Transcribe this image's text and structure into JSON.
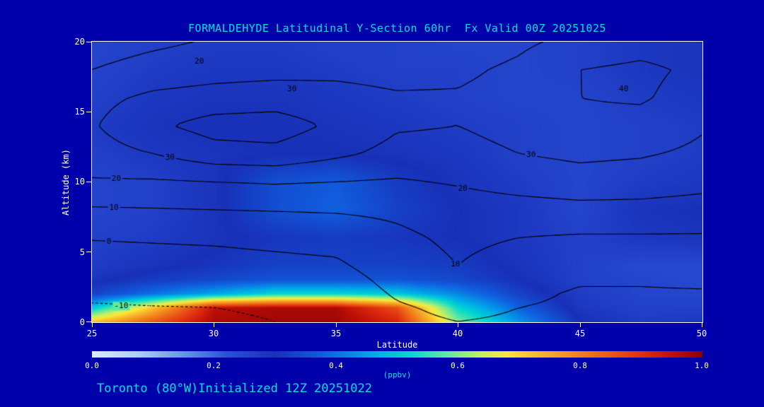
{
  "title": "FORMALDEHYDE Latitudinal Y-Section 60hr  Fx Valid 00Z 20251025",
  "footer": "Toronto (80°W)Initialized 12Z 20251022",
  "colors": {
    "background": "#0000aa",
    "accent": "#00e0e0",
    "tick": "#ffffff",
    "frame": "#ffffff"
  },
  "axes": {
    "x": {
      "label": "Latitude",
      "min": 25,
      "max": 50,
      "ticks": [
        "25",
        "30",
        "35",
        "40",
        "45",
        "50"
      ]
    },
    "y": {
      "label": "Altitude (km)",
      "min": 0,
      "max": 20,
      "ticks": [
        "0",
        "5",
        "10",
        "15",
        "20"
      ]
    }
  },
  "colorbar": {
    "label": "(ppbv)",
    "min": 0,
    "max": 1,
    "ticks": [
      "0.0",
      "0.2",
      "0.4",
      "0.6",
      "0.8",
      "1.0"
    ]
  },
  "chart_data": {
    "type": "heatmap",
    "title": "FORMALDEHYDE Latitudinal Y-Section 60hr Fx Valid 00Z 20251025",
    "xlabel": "Latitude",
    "ylabel": "Altitude (km)",
    "xlim": [
      25,
      50
    ],
    "ylim": [
      0,
      20
    ],
    "units": "ppbv",
    "fill_range": [
      0,
      1
    ],
    "x_lat": [
      25,
      27.5,
      30,
      32.5,
      35,
      37.5,
      40,
      42.5,
      45,
      47.5,
      50
    ],
    "y_alt_km": [
      0,
      1,
      2,
      3,
      4,
      6,
      8,
      10,
      12,
      14,
      16,
      18,
      20
    ],
    "fill_values_ppbv": [
      [
        0.72,
        0.85,
        0.97,
        0.98,
        0.98,
        0.92,
        0.6,
        0.44,
        0.3,
        0.27,
        0.28
      ],
      [
        0.5,
        0.72,
        0.95,
        0.97,
        0.97,
        0.86,
        0.52,
        0.38,
        0.28,
        0.26,
        0.26
      ],
      [
        0.33,
        0.4,
        0.46,
        0.52,
        0.52,
        0.5,
        0.42,
        0.33,
        0.27,
        0.25,
        0.25
      ],
      [
        0.29,
        0.32,
        0.34,
        0.36,
        0.36,
        0.36,
        0.34,
        0.3,
        0.26,
        0.25,
        0.24
      ],
      [
        0.27,
        0.29,
        0.31,
        0.33,
        0.33,
        0.33,
        0.32,
        0.29,
        0.26,
        0.24,
        0.24
      ],
      [
        0.26,
        0.27,
        0.29,
        0.31,
        0.32,
        0.31,
        0.3,
        0.28,
        0.26,
        0.28,
        0.29
      ],
      [
        0.25,
        0.26,
        0.29,
        0.35,
        0.38,
        0.33,
        0.3,
        0.28,
        0.25,
        0.29,
        0.3
      ],
      [
        0.25,
        0.26,
        0.29,
        0.35,
        0.37,
        0.32,
        0.29,
        0.27,
        0.25,
        0.27,
        0.28
      ],
      [
        0.26,
        0.28,
        0.29,
        0.3,
        0.3,
        0.29,
        0.28,
        0.26,
        0.25,
        0.26,
        0.27
      ],
      [
        0.27,
        0.29,
        0.3,
        0.3,
        0.29,
        0.28,
        0.27,
        0.26,
        0.25,
        0.26,
        0.27
      ],
      [
        0.26,
        0.28,
        0.29,
        0.29,
        0.28,
        0.27,
        0.26,
        0.25,
        0.25,
        0.27,
        0.28
      ],
      [
        0.25,
        0.27,
        0.28,
        0.28,
        0.27,
        0.26,
        0.26,
        0.25,
        0.26,
        0.28,
        0.29
      ],
      [
        0.25,
        0.26,
        0.27,
        0.27,
        0.26,
        0.26,
        0.25,
        0.25,
        0.26,
        0.28,
        0.29
      ]
    ],
    "colormap_stops": [
      {
        "pos": 0.0,
        "color": "#dcecfa"
      },
      {
        "pos": 0.08,
        "color": "#a8ccf0"
      },
      {
        "pos": 0.16,
        "color": "#5c8ee8"
      },
      {
        "pos": 0.22,
        "color": "#2b50d8"
      },
      {
        "pos": 0.3,
        "color": "#1830b8"
      },
      {
        "pos": 0.38,
        "color": "#1060e0"
      },
      {
        "pos": 0.46,
        "color": "#00a8e8"
      },
      {
        "pos": 0.52,
        "color": "#00d8d0"
      },
      {
        "pos": 0.58,
        "color": "#60e8a0"
      },
      {
        "pos": 0.64,
        "color": "#c8f060"
      },
      {
        "pos": 0.68,
        "color": "#f8e838"
      },
      {
        "pos": 0.74,
        "color": "#f8b028"
      },
      {
        "pos": 0.82,
        "color": "#f07018"
      },
      {
        "pos": 0.9,
        "color": "#e03010"
      },
      {
        "pos": 0.95,
        "color": "#c01008"
      },
      {
        "pos": 1.0,
        "color": "#8c0000"
      }
    ],
    "contour_overlay": {
      "line_color": "#000000",
      "levels": [
        -10,
        0,
        10,
        20,
        30,
        40
      ],
      "negative_linestyle": "dotted",
      "values": [
        [
          -13,
          -12.5,
          -12,
          -10,
          -8,
          -2,
          0,
          -1,
          -2,
          -2,
          -2
        ],
        [
          -10.5,
          -10.2,
          -10,
          -8.5,
          -6.5,
          -1,
          2,
          0,
          -1.5,
          -1.5,
          -1.5
        ],
        [
          -9,
          -8.5,
          -8,
          -7,
          -5.5,
          1,
          5,
          2,
          -1,
          -0.5,
          -0.5
        ],
        [
          -7,
          -6.5,
          -6,
          -5,
          -4,
          3,
          8,
          4,
          1,
          0.5,
          1
        ],
        [
          -4.5,
          -4,
          -3.5,
          -2.5,
          -1.5,
          5,
          10,
          6,
          3.5,
          3.5,
          4
        ],
        [
          0.5,
          1,
          1.5,
          2.5,
          3.5,
          8,
          12,
          10,
          9,
          9,
          9
        ],
        [
          9,
          9.5,
          10,
          10.5,
          11,
          12,
          15,
          16,
          17,
          17,
          16
        ],
        [
          19,
          19,
          20,
          21,
          20,
          19,
          21,
          24,
          26,
          25,
          23
        ],
        [
          26,
          30,
          36,
          37,
          32,
          27,
          27,
          30,
          32,
          31,
          28
        ],
        [
          29,
          38,
          44,
          45,
          38,
          31,
          30,
          33,
          38,
          37,
          31
        ],
        [
          27,
          32,
          34,
          35,
          33,
          31,
          31,
          34,
          40,
          41,
          36
        ],
        [
          20,
          24,
          26,
          27,
          28,
          27,
          28,
          32,
          40,
          42,
          38
        ],
        [
          15,
          18,
          21,
          22,
          23,
          23,
          24,
          28,
          33,
          36,
          34
        ]
      ],
      "labels": [
        {
          "value": 20,
          "lat": 29.4,
          "alt": 18.6
        },
        {
          "value": 30,
          "lat": 33.2,
          "alt": 16.6
        },
        {
          "value": 40,
          "lat": 46.8,
          "alt": 16.6
        },
        {
          "value": 30,
          "lat": 43.0,
          "alt": 11.9
        },
        {
          "value": 30,
          "lat": 28.2,
          "alt": 11.7
        },
        {
          "value": 20,
          "lat": 26.0,
          "alt": 10.2
        },
        {
          "value": 10,
          "lat": 25.9,
          "alt": 8.1
        },
        {
          "value": 0,
          "lat": 25.7,
          "alt": 5.7
        },
        {
          "value": -10,
          "lat": 26.2,
          "alt": 1.1
        },
        {
          "value": 20,
          "lat": 40.2,
          "alt": 9.5
        },
        {
          "value": 10,
          "lat": 39.9,
          "alt": 4.1
        }
      ]
    }
  }
}
